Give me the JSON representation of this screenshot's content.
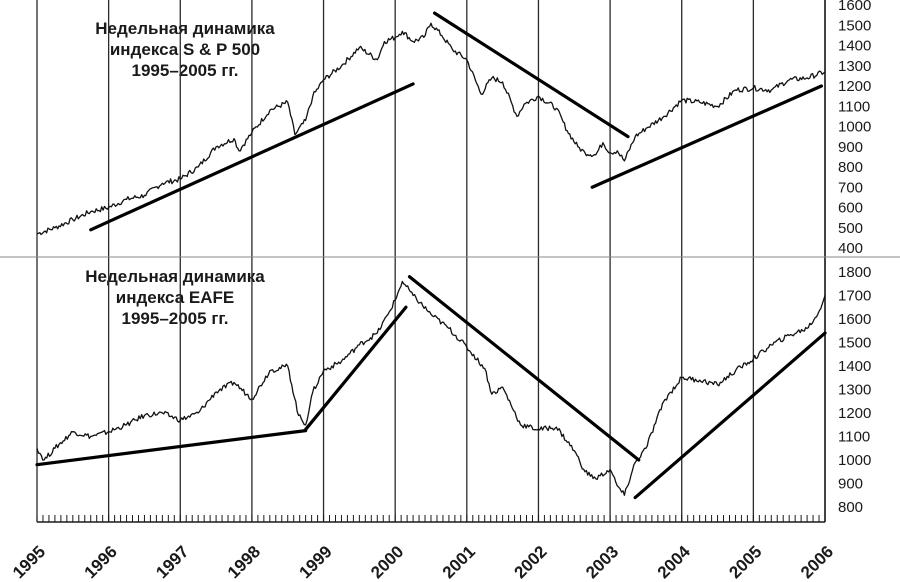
{
  "chart_data": [
    {
      "type": "line",
      "title_lines": [
        "Недельная динамика",
        "индекса S & P 500",
        "1995–2005 гг."
      ],
      "xlabel": "",
      "ylabel": "",
      "xlim": [
        1995.0,
        2006.0
      ],
      "ylim": [
        400,
        1600
      ],
      "y_ticks": [
        "400",
        "500",
        "600",
        "700",
        "800",
        "900",
        "1000",
        "1100",
        "1200",
        "1300",
        "1400",
        "1500",
        "1600"
      ],
      "grid": "vertical lines at each year",
      "series": [
        {
          "x": [
            1995.0,
            1995.25,
            1995.5,
            1995.75,
            1996.0,
            1996.25,
            1996.5,
            1996.75,
            1997.0,
            1997.25,
            1997.5,
            1997.75,
            1997.82,
            1998.0,
            1998.25,
            1998.5,
            1998.6,
            1998.75,
            1998.85,
            1999.0,
            1999.25,
            1999.5,
            1999.75,
            1999.85,
            2000.0,
            2000.1,
            2000.25,
            2000.4,
            2000.5,
            2000.65,
            2000.8,
            2001.0,
            2001.2,
            2001.35,
            2001.5,
            2001.7,
            2001.8,
            2002.0,
            2002.25,
            2002.4,
            2002.55,
            2002.65,
            2002.8,
            2002.9,
            2003.0,
            2003.1,
            2003.2,
            2003.35,
            2003.5,
            2003.75,
            2004.0,
            2004.25,
            2004.5,
            2004.75,
            2005.0,
            2005.25,
            2005.5,
            2005.75,
            2006.0
          ],
          "y": [
            470,
            500,
            540,
            580,
            600,
            640,
            660,
            720,
            740,
            800,
            900,
            940,
            880,
            970,
            1080,
            1120,
            960,
            1030,
            1150,
            1230,
            1300,
            1390,
            1330,
            1420,
            1440,
            1470,
            1420,
            1440,
            1510,
            1450,
            1380,
            1330,
            1160,
            1240,
            1220,
            1050,
            1110,
            1150,
            1090,
            980,
            900,
            870,
            860,
            920,
            870,
            880,
            830,
            950,
            990,
            1050,
            1130,
            1120,
            1100,
            1180,
            1190,
            1180,
            1230,
            1240,
            1270
          ]
        }
      ],
      "trendlines": [
        {
          "x": [
            1995.75,
            2000.25
          ],
          "y": [
            490,
            1210
          ]
        },
        {
          "x": [
            2000.55,
            2003.25
          ],
          "y": [
            1560,
            950
          ]
        },
        {
          "x": [
            2002.75,
            2005.95
          ],
          "y": [
            700,
            1200
          ]
        }
      ]
    },
    {
      "type": "line",
      "title_lines": [
        "Недельная динамика",
        "индекса EAFE",
        "1995–2005 гг."
      ],
      "xlabel": "",
      "ylabel": "",
      "xlim": [
        1995.0,
        2006.0
      ],
      "ylim": [
        800,
        1800
      ],
      "y_ticks": [
        "800",
        "900",
        "1000",
        "1100",
        "1200",
        "1300",
        "1400",
        "1500",
        "1600",
        "1700",
        "1800"
      ],
      "x_ticks": [
        "1995",
        "1996",
        "1997",
        "1998",
        "1999",
        "2000",
        "2001",
        "2002",
        "2003",
        "2004",
        "2005",
        "2006"
      ],
      "grid": "vertical lines at each year",
      "series": [
        {
          "x": [
            1995.0,
            1995.1,
            1995.25,
            1995.5,
            1995.75,
            1996.0,
            1996.25,
            1996.5,
            1996.75,
            1997.0,
            1997.25,
            1997.5,
            1997.75,
            1998.0,
            1998.25,
            1998.5,
            1998.65,
            1998.75,
            1998.85,
            1999.0,
            1999.25,
            1999.5,
            1999.75,
            1999.9,
            2000.0,
            2000.1,
            2000.25,
            2000.5,
            2000.75,
            2001.0,
            2001.25,
            2001.35,
            2001.5,
            2001.75,
            2002.0,
            2002.25,
            2002.5,
            2002.65,
            2002.8,
            2003.0,
            2003.1,
            2003.2,
            2003.35,
            2003.5,
            2003.75,
            2004.0,
            2004.25,
            2004.5,
            2004.75,
            2005.0,
            2005.25,
            2005.5,
            2005.75,
            2005.9,
            2006.0
          ],
          "y": [
            1050,
            1000,
            1050,
            1120,
            1100,
            1120,
            1150,
            1190,
            1200,
            1170,
            1200,
            1290,
            1330,
            1260,
            1380,
            1400,
            1190,
            1150,
            1290,
            1380,
            1420,
            1490,
            1540,
            1620,
            1680,
            1760,
            1700,
            1620,
            1560,
            1480,
            1390,
            1280,
            1310,
            1150,
            1130,
            1140,
            1040,
            950,
            920,
            960,
            890,
            850,
            990,
            1050,
            1250,
            1350,
            1340,
            1320,
            1380,
            1430,
            1490,
            1530,
            1560,
            1620,
            1700
          ]
        }
      ],
      "trendlines": [
        {
          "x": [
            1995.0,
            1998.75
          ],
          "y": [
            980,
            1125
          ]
        },
        {
          "x": [
            1998.75,
            2000.15
          ],
          "y": [
            1130,
            1650
          ]
        },
        {
          "x": [
            2000.2,
            2003.4
          ],
          "y": [
            1780,
            1000
          ]
        },
        {
          "x": [
            2003.35,
            2006.0
          ],
          "y": [
            840,
            1540
          ]
        }
      ]
    }
  ]
}
